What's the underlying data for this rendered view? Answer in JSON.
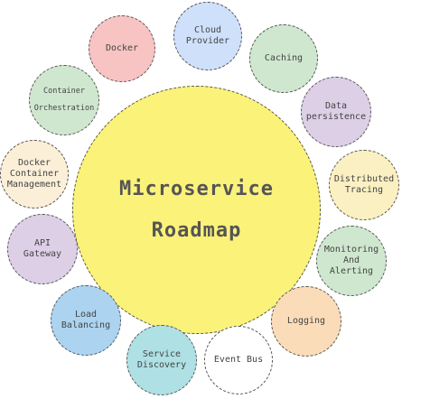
{
  "center": {
    "label": "Microservice\nRoadmap",
    "color": "#fbf27a"
  },
  "nodes": [
    {
      "label": "Docker",
      "color": "#f7c3c3"
    },
    {
      "label": "Cloud\nProvider",
      "color": "#cfe0fb"
    },
    {
      "label": "Caching",
      "color": "#cfe7cf"
    },
    {
      "label": "Data\npersistence",
      "color": "#dccfe6"
    },
    {
      "label": "Distributed\nTracing",
      "color": "#fbf0c2"
    },
    {
      "label": "Monitoring\nAnd\nAlerting",
      "color": "#cfe7cf"
    },
    {
      "label": "Logging",
      "color": "#fbdcb8"
    },
    {
      "label": "Event Bus",
      "color": "#ffffff"
    },
    {
      "label": "Service\nDiscovery",
      "color": "#aee0e4"
    },
    {
      "label": "Load\nBalancing",
      "color": "#acd3f0"
    },
    {
      "label": "API\nGateway",
      "color": "#dccfe6"
    },
    {
      "label": "Docker\nContainer\nManagement",
      "color": "#fbefd8"
    },
    {
      "label": "Container\nOrchestration",
      "color": "#cfe7cf"
    }
  ]
}
